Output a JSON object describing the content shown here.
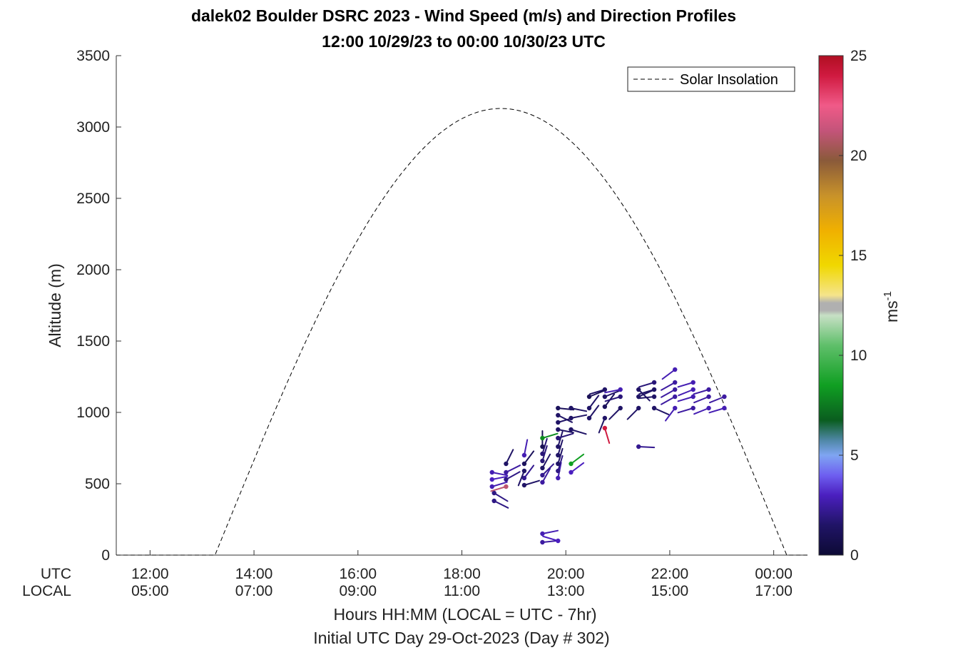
{
  "chart_data": {
    "type": "scatter",
    "title_line1": "dalek02 Boulder DSRC 2023 - Wind Speed (m/s) and Direction Profiles",
    "title_line2": "12:00 10/29/23 to 00:00 10/30/23  UTC",
    "ylabel": "Altitude (m)",
    "xlabel": "Hours HH:MM  (LOCAL = UTC - 7hr)",
    "xlabel2": "Initial UTC Day 29-Oct-2023 (Day # 302)",
    "x_row_labels": [
      "UTC",
      "LOCAL"
    ],
    "x_tick_hours": [
      12,
      14,
      16,
      18,
      20,
      22,
      24
    ],
    "x_ticks_utc": [
      "12:00",
      "14:00",
      "16:00",
      "18:00",
      "20:00",
      "22:00",
      "00:00"
    ],
    "x_ticks_local": [
      "05:00",
      "07:00",
      "09:00",
      "11:00",
      "13:00",
      "15:00",
      "17:00"
    ],
    "xlim_hours": [
      11.35,
      24.65
    ],
    "ylim": [
      0,
      3500
    ],
    "y_ticks": [
      0,
      500,
      1000,
      1500,
      2000,
      2500,
      3000,
      3500
    ],
    "y_tick_labels": [
      "0",
      "500",
      "1000",
      "1500",
      "2000",
      "2500",
      "3000",
      "3500"
    ],
    "legend": {
      "label": "Solar Insolation",
      "placement": "top-right"
    },
    "colorbar": {
      "label_base": "ms",
      "label_exp": "-1",
      "range": [
        0,
        25
      ],
      "ticks": [
        0,
        5,
        10,
        15,
        20,
        25
      ],
      "tick_labels": [
        "0",
        "5",
        "10",
        "15",
        "20",
        "25"
      ]
    },
    "solar_insolation": {
      "style": "dashed",
      "rise_hour": 13.25,
      "set_hour": 24.25,
      "peak_m": 3130
    },
    "wind_barbs": [
      {
        "t": 18.62,
        "alt": 380,
        "speed": 2.0,
        "u": 1.0,
        "v": 0.5
      },
      {
        "t": 18.62,
        "alt": 435,
        "speed": 2.0,
        "u": 1.0,
        "v": 0.6
      },
      {
        "t": 18.58,
        "alt": 480,
        "speed": 2.8,
        "u": 1.0,
        "v": -0.3
      },
      {
        "t": 18.58,
        "alt": 530,
        "speed": 3.0,
        "u": 1.0,
        "v": -0.2
      },
      {
        "t": 18.58,
        "alt": 580,
        "speed": 2.8,
        "u": 1.0,
        "v": 0.2
      },
      {
        "t": 18.85,
        "alt": 480,
        "speed": 21.0,
        "u": -1.0,
        "v": 0.3
      },
      {
        "t": 18.85,
        "alt": 530,
        "speed": 2.0,
        "u": 0.9,
        "v": -0.5
      },
      {
        "t": 18.85,
        "alt": 580,
        "speed": 2.5,
        "u": 1.0,
        "v": -0.5
      },
      {
        "t": 18.85,
        "alt": 640,
        "speed": 1.5,
        "u": 0.5,
        "v": -1.0
      },
      {
        "t": 19.2,
        "alt": 490,
        "speed": 1.5,
        "u": 1.0,
        "v": -0.3
      },
      {
        "t": 19.2,
        "alt": 540,
        "speed": 2.2,
        "u": 0.6,
        "v": -0.8
      },
      {
        "t": 19.2,
        "alt": 590,
        "speed": 1.5,
        "u": -0.4,
        "v": 1.0
      },
      {
        "t": 19.2,
        "alt": 640,
        "speed": 1.2,
        "u": 0.6,
        "v": -0.8
      },
      {
        "t": 19.2,
        "alt": 700,
        "speed": 2.8,
        "u": 0.2,
        "v": -1.0
      },
      {
        "t": 19.55,
        "alt": 510,
        "speed": 2.5,
        "u": 0.5,
        "v": -0.9
      },
      {
        "t": 19.55,
        "alt": 560,
        "speed": 2.2,
        "u": 0.7,
        "v": -0.7
      },
      {
        "t": 19.55,
        "alt": 610,
        "speed": 1.5,
        "u": 0.5,
        "v": -0.9
      },
      {
        "t": 19.55,
        "alt": 660,
        "speed": 1.8,
        "u": 0.3,
        "v": -1.0
      },
      {
        "t": 19.55,
        "alt": 710,
        "speed": 1.8,
        "u": 0.3,
        "v": -1.0
      },
      {
        "t": 19.55,
        "alt": 760,
        "speed": 1.0,
        "u": 0.0,
        "v": -1.0
      },
      {
        "t": 19.55,
        "alt": 820,
        "speed": 8.0,
        "u": 1.0,
        "v": -0.3
      },
      {
        "t": 19.55,
        "alt": 90,
        "speed": 2.5,
        "u": 1.0,
        "v": -0.1
      },
      {
        "t": 19.55,
        "alt": 150,
        "speed": 2.8,
        "u": 1.0,
        "v": -0.2
      },
      {
        "t": 19.85,
        "alt": 100,
        "speed": 3.0,
        "u": -1.0,
        "v": -0.3
      },
      {
        "t": 19.85,
        "alt": 540,
        "speed": 2.8,
        "u": 0.2,
        "v": -1.0
      },
      {
        "t": 19.85,
        "alt": 590,
        "speed": 2.0,
        "u": 0.3,
        "v": -1.0
      },
      {
        "t": 19.85,
        "alt": 640,
        "speed": 1.5,
        "u": 0.3,
        "v": -1.0
      },
      {
        "t": 19.85,
        "alt": 700,
        "speed": 1.5,
        "u": 0.3,
        "v": -1.0
      },
      {
        "t": 19.85,
        "alt": 760,
        "speed": 1.5,
        "u": 0.3,
        "v": -1.0
      },
      {
        "t": 19.85,
        "alt": 820,
        "speed": 1.8,
        "u": 1.0,
        "v": -0.3
      },
      {
        "t": 19.85,
        "alt": 880,
        "speed": 1.5,
        "u": 1.0,
        "v": 0.2
      },
      {
        "t": 19.85,
        "alt": 930,
        "speed": 1.5,
        "u": 1.0,
        "v": -0.3
      },
      {
        "t": 19.85,
        "alt": 980,
        "speed": 1.5,
        "u": 1.0,
        "v": 0.5
      },
      {
        "t": 19.85,
        "alt": 1030,
        "speed": 1.2,
        "u": 1.0,
        "v": 0.1
      },
      {
        "t": 20.1,
        "alt": 580,
        "speed": 3.0,
        "u": 0.8,
        "v": -0.6
      },
      {
        "t": 20.1,
        "alt": 640,
        "speed": 8.5,
        "u": 0.8,
        "v": -0.6
      },
      {
        "t": 20.1,
        "alt": 880,
        "speed": 1.5,
        "u": 1.0,
        "v": 0.3
      },
      {
        "t": 20.1,
        "alt": 960,
        "speed": 1.5,
        "u": 1.0,
        "v": -0.2
      },
      {
        "t": 20.1,
        "alt": 1030,
        "speed": 1.5,
        "u": 1.0,
        "v": 0.2
      },
      {
        "t": 20.45,
        "alt": 960,
        "speed": 1.5,
        "u": 0.6,
        "v": -0.8
      },
      {
        "t": 20.45,
        "alt": 1030,
        "speed": 1.5,
        "u": 0.6,
        "v": -0.8
      },
      {
        "t": 20.45,
        "alt": 1110,
        "speed": 1.0,
        "u": 1.0,
        "v": -0.4
      },
      {
        "t": 20.75,
        "alt": 890,
        "speed": 24.0,
        "u": 0.3,
        "v": 1.0
      },
      {
        "t": 20.75,
        "alt": 960,
        "speed": 1.5,
        "u": -0.4,
        "v": 1.0
      },
      {
        "t": 20.75,
        "alt": 1040,
        "speed": 1.2,
        "u": 0.6,
        "v": -0.8
      },
      {
        "t": 20.75,
        "alt": 1110,
        "speed": 1.5,
        "u": 1.0,
        "v": -0.4
      },
      {
        "t": 20.75,
        "alt": 1160,
        "speed": 1.5,
        "u": -1.0,
        "v": 0.3
      },
      {
        "t": 21.05,
        "alt": 1030,
        "speed": 1.5,
        "u": -0.7,
        "v": 0.7
      },
      {
        "t": 21.05,
        "alt": 1110,
        "speed": 1.8,
        "u": -1.0,
        "v": 0.3
      },
      {
        "t": 21.05,
        "alt": 1160,
        "speed": 2.8,
        "u": -1.0,
        "v": 0.2
      },
      {
        "t": 21.4,
        "alt": 760,
        "speed": 2.2,
        "u": 1.0,
        "v": 0.05
      },
      {
        "t": 21.4,
        "alt": 1030,
        "speed": 1.5,
        "u": -0.7,
        "v": 0.7
      },
      {
        "t": 21.4,
        "alt": 1110,
        "speed": 1.5,
        "u": 0.9,
        "v": -0.4
      },
      {
        "t": 21.4,
        "alt": 1160,
        "speed": 1.5,
        "u": 0.7,
        "v": 0.7
      },
      {
        "t": 21.7,
        "alt": 1030,
        "speed": 1.5,
        "u": 0.9,
        "v": 0.4
      },
      {
        "t": 21.7,
        "alt": 1110,
        "speed": 1.5,
        "u": -1.0,
        "v": 0.1
      },
      {
        "t": 21.7,
        "alt": 1160,
        "speed": 1.5,
        "u": -1.0,
        "v": 0.3
      },
      {
        "t": 21.7,
        "alt": 1210,
        "speed": 1.8,
        "u": -1.0,
        "v": 0.3
      },
      {
        "t": 22.1,
        "alt": 1030,
        "speed": 2.8,
        "u": -0.6,
        "v": 0.8
      },
      {
        "t": 22.1,
        "alt": 1110,
        "speed": 2.5,
        "u": -0.9,
        "v": 0.5
      },
      {
        "t": 22.1,
        "alt": 1160,
        "speed": 2.5,
        "u": -0.9,
        "v": 0.5
      },
      {
        "t": 22.1,
        "alt": 1210,
        "speed": 2.5,
        "u": -0.9,
        "v": 0.5
      },
      {
        "t": 22.1,
        "alt": 1300,
        "speed": 2.8,
        "u": -0.8,
        "v": 0.6
      },
      {
        "t": 22.45,
        "alt": 1030,
        "speed": 2.5,
        "u": -1.0,
        "v": 0.3
      },
      {
        "t": 22.45,
        "alt": 1110,
        "speed": 2.8,
        "u": -1.0,
        "v": 0.3
      },
      {
        "t": 22.45,
        "alt": 1160,
        "speed": 2.8,
        "u": -1.0,
        "v": 0.4
      },
      {
        "t": 22.45,
        "alt": 1210,
        "speed": 2.8,
        "u": -1.0,
        "v": 0.3
      },
      {
        "t": 22.75,
        "alt": 1030,
        "speed": 2.8,
        "u": -1.0,
        "v": 0.4
      },
      {
        "t": 22.75,
        "alt": 1110,
        "speed": 2.5,
        "u": -1.0,
        "v": 0.4
      },
      {
        "t": 22.75,
        "alt": 1160,
        "speed": 2.5,
        "u": -1.0,
        "v": 0.3
      },
      {
        "t": 23.05,
        "alt": 1030,
        "speed": 2.8,
        "u": -1.0,
        "v": 0.3
      },
      {
        "t": 23.05,
        "alt": 1110,
        "speed": 2.5,
        "u": -1.0,
        "v": 0.4
      }
    ]
  }
}
